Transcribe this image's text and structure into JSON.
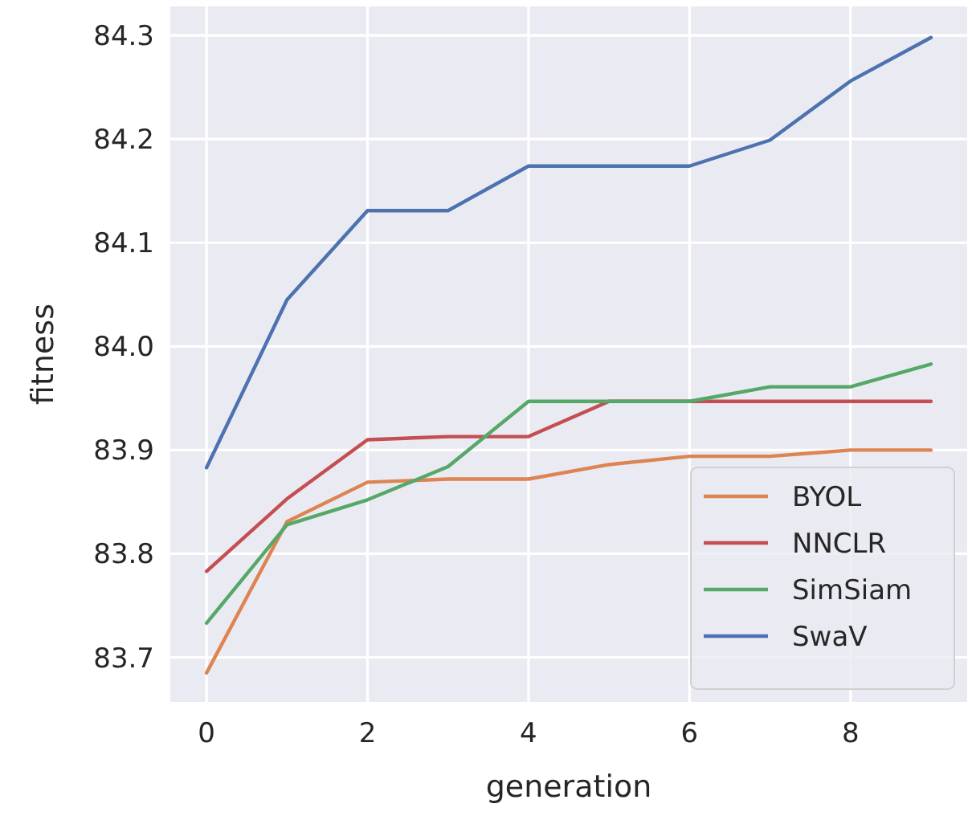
{
  "chart_data": {
    "type": "line",
    "xlabel": "generation",
    "ylabel": "fitness",
    "x": [
      0,
      1,
      2,
      3,
      4,
      5,
      6,
      7,
      8,
      9
    ],
    "xlim": [
      -0.45,
      9.45
    ],
    "xticks": [
      0,
      2,
      4,
      6,
      8
    ],
    "ylim": [
      83.657,
      84.328
    ],
    "yticks": [
      {
        "value": 83.7,
        "label": "83.7"
      },
      {
        "value": 83.8,
        "label": "83.8"
      },
      {
        "value": 83.9,
        "label": "83.9"
      },
      {
        "value": 84.0,
        "label": "84.0"
      },
      {
        "value": 84.1,
        "label": "84.1"
      },
      {
        "value": 84.2,
        "label": "84.2"
      },
      {
        "value": 84.3,
        "label": "84.3"
      }
    ],
    "grid": true,
    "legend": "bottom right",
    "marker": "none",
    "line_style": "solid",
    "series": [
      {
        "name": "BYOL",
        "color": "#dd8452",
        "values": [
          83.685,
          83.831,
          83.869,
          83.872,
          83.872,
          83.886,
          83.894,
          83.894,
          83.9,
          83.9
        ]
      },
      {
        "name": "NNCLR",
        "color": "#c44e52",
        "values": [
          83.783,
          83.853,
          83.91,
          83.913,
          83.913,
          83.947,
          83.947,
          83.947,
          83.947,
          83.947
        ]
      },
      {
        "name": "SimSiam",
        "color": "#55a868",
        "values": [
          83.733,
          83.828,
          83.852,
          83.884,
          83.947,
          83.947,
          83.947,
          83.961,
          83.961,
          83.983
        ]
      },
      {
        "name": "SwaV",
        "color": "#4c72b0",
        "values": [
          83.883,
          84.045,
          84.131,
          84.131,
          84.174,
          84.174,
          84.174,
          84.199,
          84.256,
          84.298
        ]
      }
    ]
  }
}
